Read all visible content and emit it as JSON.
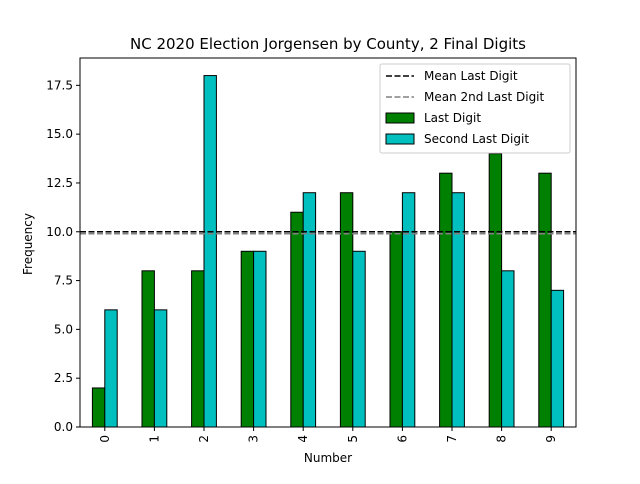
{
  "chart_data": {
    "type": "bar",
    "title": "NC 2020 Election Jorgensen by County, 2 Final Digits",
    "xlabel": "Number",
    "ylabel": "Frequency",
    "categories": [
      "0",
      "1",
      "2",
      "3",
      "4",
      "5",
      "6",
      "7",
      "8",
      "9"
    ],
    "series": [
      {
        "name": "Last Digit",
        "values": [
          2,
          8,
          8,
          9,
          11,
          12,
          10,
          13,
          14,
          13
        ],
        "color": "#008000"
      },
      {
        "name": "Second Last Digit",
        "values": [
          6,
          6,
          18,
          9,
          12,
          9,
          12,
          12,
          8,
          7
        ],
        "color": "#00bfbf"
      }
    ],
    "reference_lines": [
      {
        "name": "Mean Last Digit",
        "value": 10.0,
        "color": "#000000",
        "style": "dashed"
      },
      {
        "name": "Mean 2nd Last Digit",
        "value": 9.9,
        "color": "#808080",
        "style": "dashed"
      }
    ],
    "ylim": [
      0,
      18.9
    ],
    "yticks": [
      "0.0",
      "2.5",
      "5.0",
      "7.5",
      "10.0",
      "12.5",
      "15.0",
      "17.5"
    ],
    "grid": false,
    "legend_position": "top-right"
  }
}
